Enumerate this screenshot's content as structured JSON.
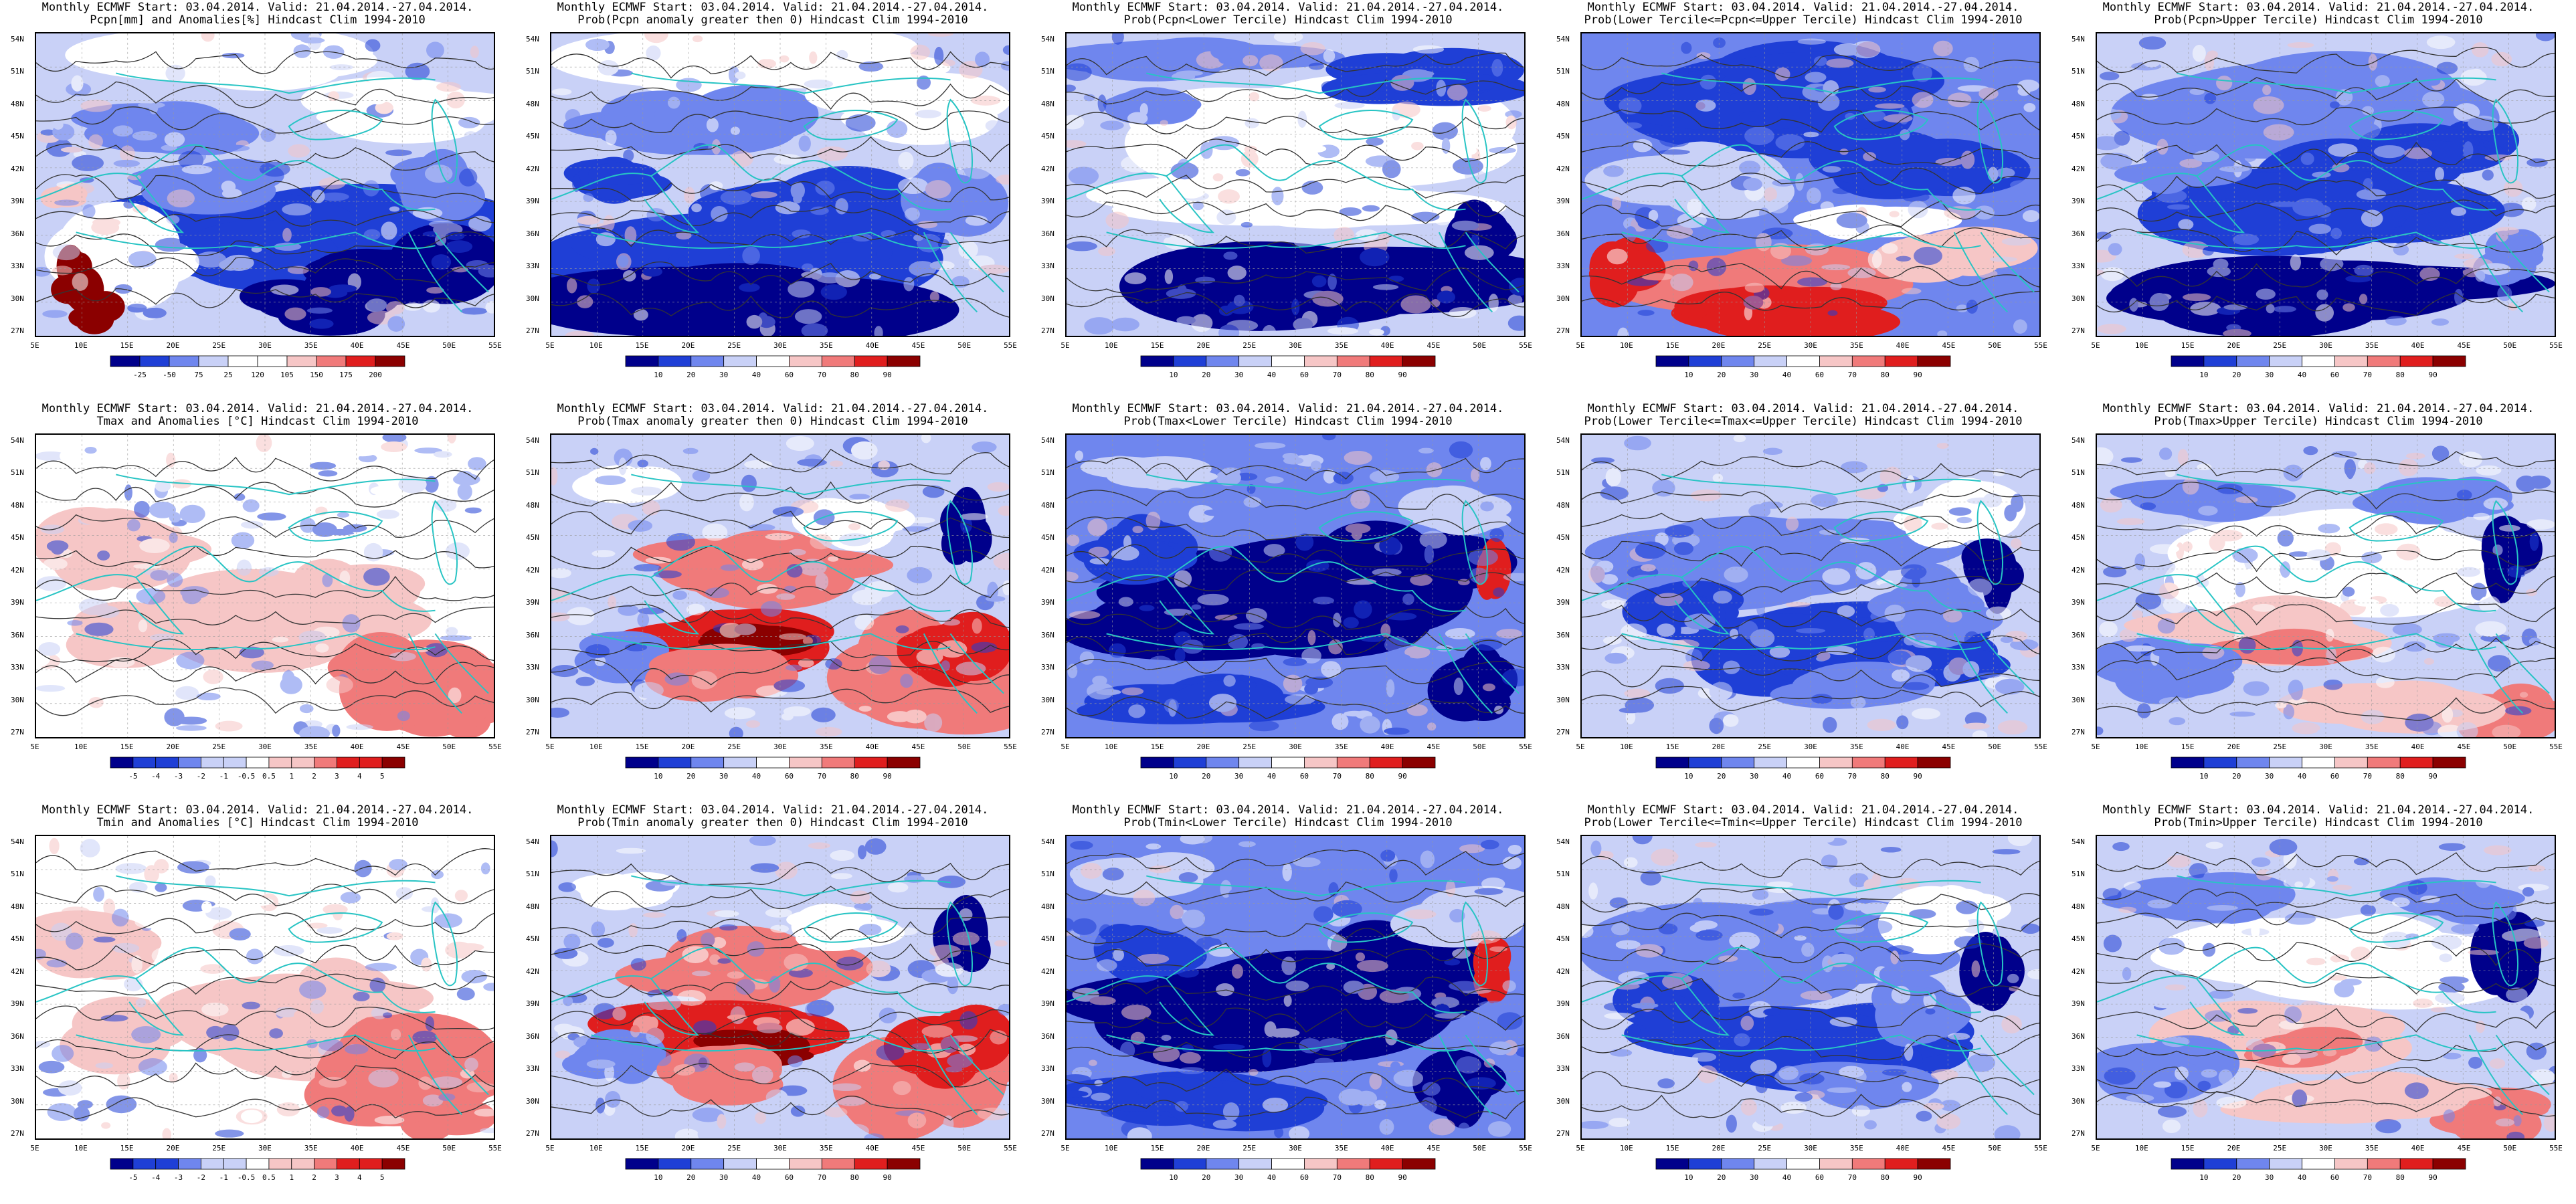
{
  "figure": {
    "panels": [
      {
        "title_line1": "Monthly ECMWF Start: 03.04.2014. Valid: 21.04.2014.-27.04.2014.",
        "title_line2": "Pcpn[mm] and Anomalies[%] Hindcast Clim 1994-2010",
        "scheme": "precip_anom",
        "colorbar": [
          "-25",
          "-50",
          "75",
          "25",
          "120",
          "105",
          "150",
          "175",
          "200"
        ]
      },
      {
        "title_line1": "Monthly ECMWF Start: 03.04.2014. Valid: 21.04.2014.-27.04.2014.",
        "title_line2": "Prob(Pcpn anomaly greater then 0) Hindcast Clim 1994-2010",
        "scheme": "pcpn_pos",
        "colorbar": [
          "10",
          "20",
          "30",
          "40",
          "60",
          "70",
          "80",
          "90"
        ]
      },
      {
        "title_line1": "Monthly ECMWF Start: 03.04.2014. Valid: 21.04.2014.-27.04.2014.",
        "title_line2": "Prob(Pcpn<Lower Tercile) Hindcast Clim 1994-2010",
        "scheme": "pcpn_low",
        "colorbar": [
          "10",
          "20",
          "30",
          "40",
          "60",
          "70",
          "80",
          "90"
        ]
      },
      {
        "title_line1": "Monthly ECMWF Start: 03.04.2014. Valid: 21.04.2014.-27.04.2014.",
        "title_line2": "Prob(Lower Tercile<=Pcpn<=Upper Tercile) Hindcast Clim 1994-2010",
        "scheme": "pcpn_mid",
        "colorbar": [
          "10",
          "20",
          "30",
          "40",
          "60",
          "70",
          "80",
          "90"
        ]
      },
      {
        "title_line1": "Monthly ECMWF Start: 03.04.2014. Valid: 21.04.2014.-27.04.2014.",
        "title_line2": "Prob(Pcpn>Upper Tercile) Hindcast Clim 1994-2010",
        "scheme": "pcpn_high",
        "colorbar": [
          "10",
          "20",
          "30",
          "40",
          "60",
          "70",
          "80",
          "90"
        ]
      },
      {
        "title_line1": "Monthly ECMWF Start: 03.04.2014. Valid: 21.04.2014.-27.04.2014.",
        "title_line2": "Tmax and Anomalies [°C] Hindcast Clim 1994-2010",
        "scheme": "temp_anom",
        "colorbar": [
          "-5",
          "-4",
          "-3",
          "-2",
          "-1",
          "-0.5",
          "0.5",
          "1",
          "2",
          "3",
          "4",
          "5"
        ]
      },
      {
        "title_line1": "Monthly ECMWF Start: 03.04.2014. Valid: 21.04.2014.-27.04.2014.",
        "title_line2": "Prob(Tmax anomaly greater then 0) Hindcast Clim 1994-2010",
        "scheme": "temp_pos",
        "colorbar": [
          "10",
          "20",
          "30",
          "40",
          "60",
          "70",
          "80",
          "90"
        ]
      },
      {
        "title_line1": "Monthly ECMWF Start: 03.04.2014. Valid: 21.04.2014.-27.04.2014.",
        "title_line2": "Prob(Tmax<Lower Tercile) Hindcast Clim 1994-2010",
        "scheme": "temp_low",
        "colorbar": [
          "10",
          "20",
          "30",
          "40",
          "60",
          "70",
          "80",
          "90"
        ]
      },
      {
        "title_line1": "Monthly ECMWF Start: 03.04.2014. Valid: 21.04.2014.-27.04.2014.",
        "title_line2": "Prob(Lower Tercile<=Tmax<=Upper Tercile) Hindcast Clim 1994-2010",
        "scheme": "temp_mid",
        "colorbar": [
          "10",
          "20",
          "30",
          "40",
          "60",
          "70",
          "80",
          "90"
        ]
      },
      {
        "title_line1": "Monthly ECMWF Start: 03.04.2014. Valid: 21.04.2014.-27.04.2014.",
        "title_line2": "Prob(Tmax>Upper Tercile) Hindcast Clim 1994-2010",
        "scheme": "temp_high",
        "colorbar": [
          "10",
          "20",
          "30",
          "40",
          "60",
          "70",
          "80",
          "90"
        ]
      },
      {
        "title_line1": "Monthly ECMWF Start: 03.04.2014. Valid: 21.04.2014.-27.04.2014.",
        "title_line2": "Tmin and Anomalies [°C] Hindcast Clim 1994-2010",
        "scheme": "temp_anom",
        "colorbar": [
          "-5",
          "-4",
          "-3",
          "-2",
          "-1",
          "-0.5",
          "0.5",
          "1",
          "2",
          "3",
          "4",
          "5"
        ]
      },
      {
        "title_line1": "Monthly ECMWF Start: 03.04.2014. Valid: 21.04.2014.-27.04.2014.",
        "title_line2": "Prob(Tmin anomaly greater then 0) Hindcast Clim 1994-2010",
        "scheme": "temp_pos",
        "colorbar": [
          "10",
          "20",
          "30",
          "40",
          "60",
          "70",
          "80",
          "90"
        ]
      },
      {
        "title_line1": "Monthly ECMWF Start: 03.04.2014. Valid: 21.04.2014.-27.04.2014.",
        "title_line2": "Prob(Tmin<Lower Tercile) Hindcast Clim 1994-2010",
        "scheme": "temp_low",
        "colorbar": [
          "10",
          "20",
          "30",
          "40",
          "60",
          "70",
          "80",
          "90"
        ]
      },
      {
        "title_line1": "Monthly ECMWF Start: 03.04.2014. Valid: 21.04.2014.-27.04.2014.",
        "title_line2": "Prob(Lower Tercile<=Tmin<=Upper Tercile) Hindcast Clim 1994-2010",
        "scheme": "temp_mid",
        "colorbar": [
          "10",
          "20",
          "30",
          "40",
          "60",
          "70",
          "80",
          "90"
        ]
      },
      {
        "title_line1": "Monthly ECMWF Start: 03.04.2014. Valid: 21.04.2014.-27.04.2014.",
        "title_line2": "Prob(Tmin>Upper Tercile) Hindcast Clim 1994-2010",
        "scheme": "temp_high",
        "colorbar": [
          "10",
          "20",
          "30",
          "40",
          "60",
          "70",
          "80",
          "90"
        ]
      }
    ],
    "lat_labels": [
      "54N",
      "51N",
      "48N",
      "45N",
      "42N",
      "39N",
      "36N",
      "33N",
      "30N",
      "27N"
    ],
    "lon_labels": [
      "5E",
      "10E",
      "15E",
      "20E",
      "25E",
      "30E",
      "35E",
      "40E",
      "45E",
      "50E",
      "55E"
    ],
    "palette": {
      "blue_dark": "#00008b",
      "blue_mid": "#1f3fd6",
      "blue_light": "#6f86ee",
      "blue_pale": "#c9d1f7",
      "white": "#ffffff",
      "red_pale": "#f6c6c6",
      "red_light": "#f07a7a",
      "red_mid": "#e01e1e",
      "red_dark": "#8b0000",
      "coast": "#27c4c4",
      "contour": "#333333"
    }
  }
}
